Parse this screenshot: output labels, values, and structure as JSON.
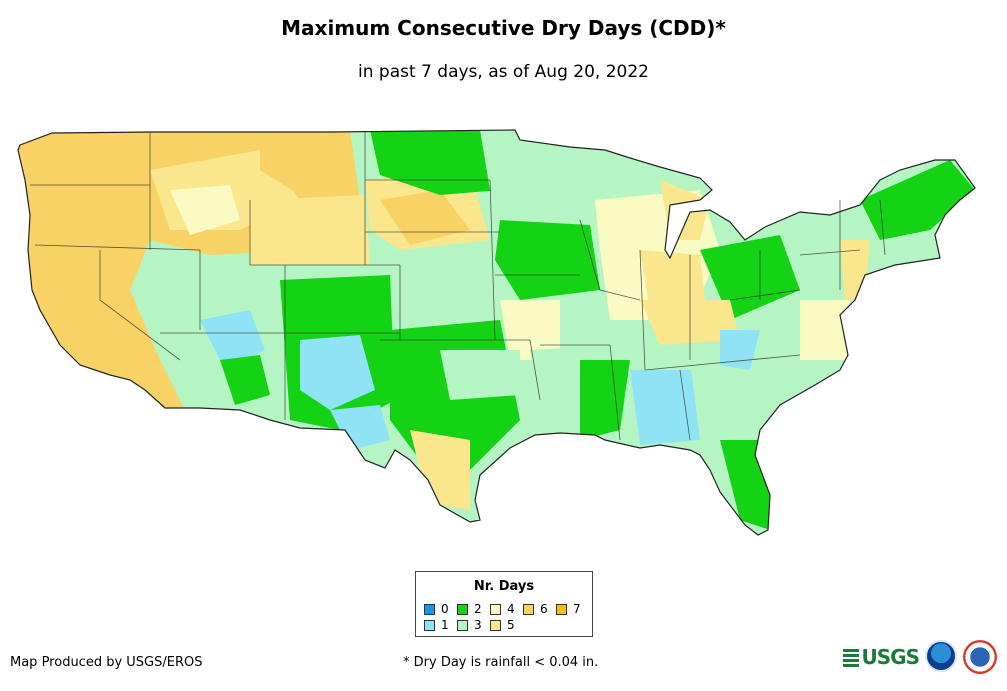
{
  "title": "Maximum Consecutive Dry Days (CDD)*",
  "subtitle": "in past 7 days, as of Aug 20, 2022",
  "legend": {
    "title": "Nr. Days",
    "items": [
      {
        "label": "0",
        "color": "#1a96e6"
      },
      {
        "label": "1",
        "color": "#8fe3f5"
      },
      {
        "label": "2",
        "color": "#14d214"
      },
      {
        "label": "3",
        "color": "#b4f5c3"
      },
      {
        "label": "4",
        "color": "#fafac3"
      },
      {
        "label": "5",
        "color": "#fae68c"
      },
      {
        "label": "6",
        "color": "#f8d264"
      },
      {
        "label": "7",
        "color": "#f5be19"
      }
    ]
  },
  "credit": "Map Produced by USGS/EROS",
  "footnote": "* Dry Day is rainfall < 0.04 in.",
  "logos": {
    "usgs": "USGS"
  }
}
